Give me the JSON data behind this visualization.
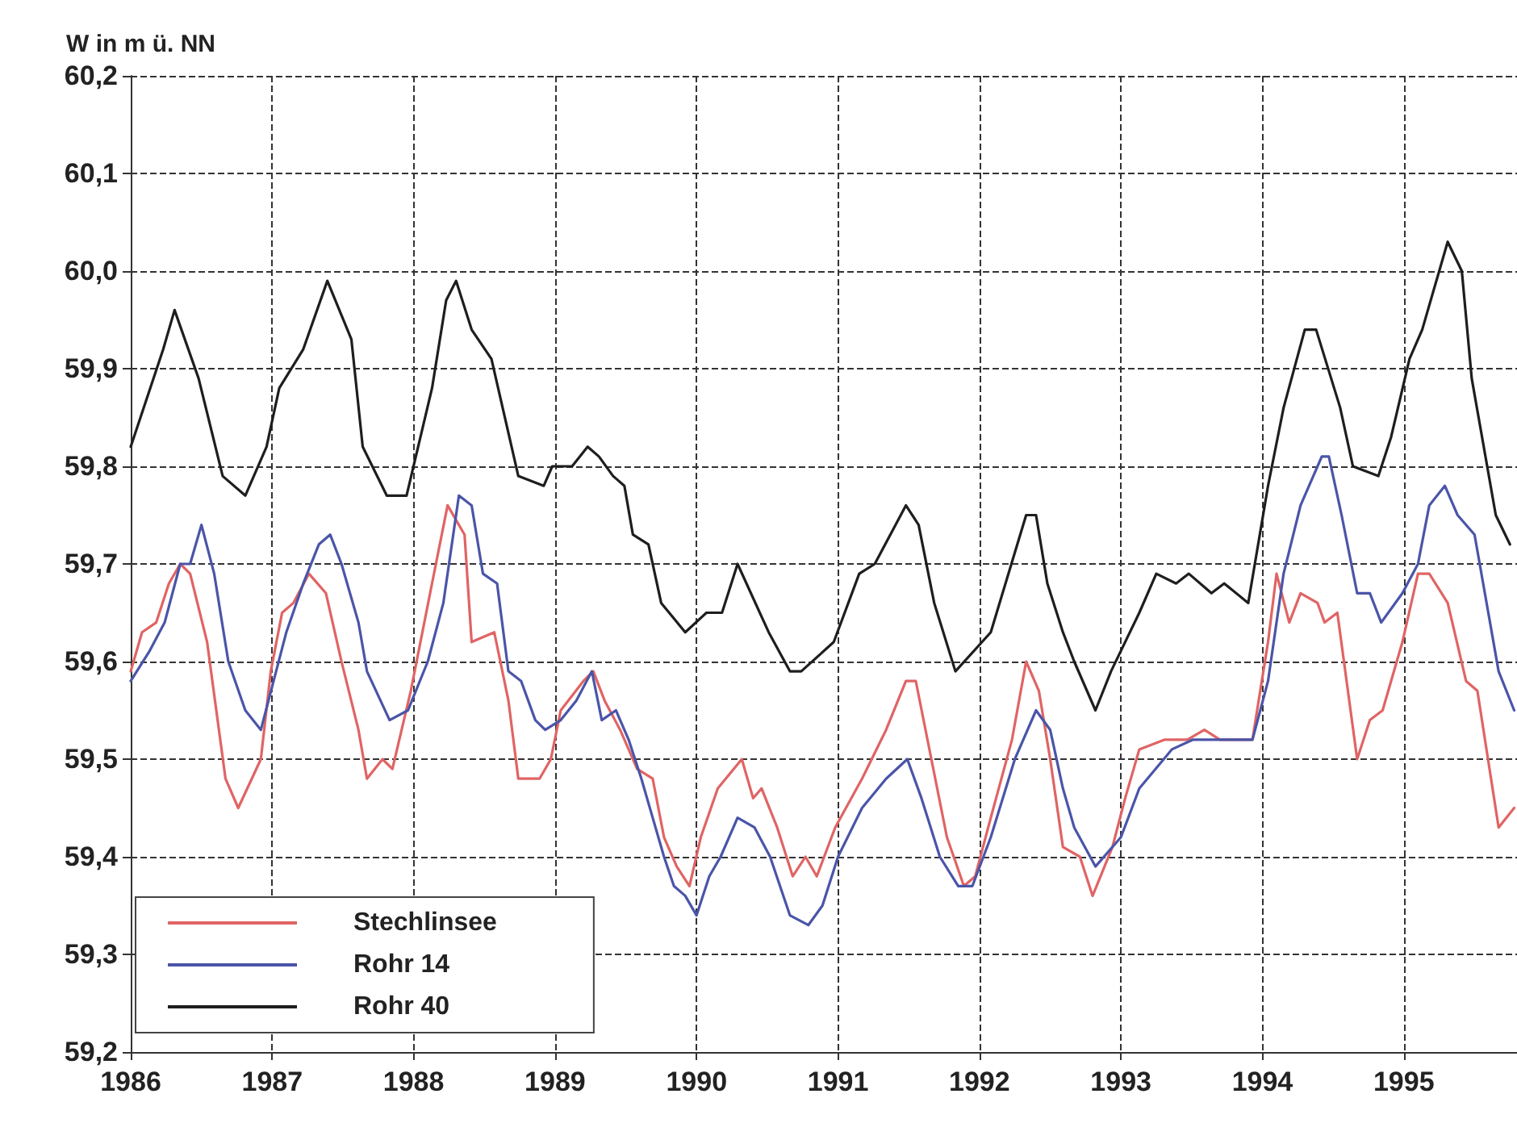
{
  "chart_data": {
    "type": "line",
    "ylabel": "W in m ü. NN",
    "xlim": [
      1986,
      1995.8
    ],
    "xticks": [
      1986,
      1987,
      1988,
      1989,
      1990,
      1991,
      1992,
      1993,
      1994,
      1995
    ],
    "ylim": [
      59.2,
      60.2
    ],
    "yticks": [
      {
        "value": 59.2,
        "label": "59,2"
      },
      {
        "value": 59.3,
        "label": "59,3"
      },
      {
        "value": 59.4,
        "label": "59,4"
      },
      {
        "value": 59.5,
        "label": "59,5"
      },
      {
        "value": 59.6,
        "label": "59,6"
      },
      {
        "value": 59.7,
        "label": "59,7"
      },
      {
        "value": 59.8,
        "label": "59,8"
      },
      {
        "value": 59.9,
        "label": "59,9"
      },
      {
        "value": 60.0,
        "label": "60,0"
      },
      {
        "value": 60.1,
        "label": "60,1"
      },
      {
        "value": 60.2,
        "label": "60,2"
      }
    ],
    "grid": true,
    "legend": "bottom left",
    "marker": "none",
    "line_style": "solid",
    "series": [
      {
        "name": "Stechlinsee",
        "color": "#e06464",
        "x": [
          1986.0,
          1986.08,
          1986.18,
          1986.27,
          1986.35,
          1986.42,
          1986.54,
          1986.67,
          1986.76,
          1986.92,
          1986.99,
          1987.07,
          1987.15,
          1987.26,
          1987.38,
          1987.49,
          1987.61,
          1987.67,
          1987.78,
          1987.85,
          1987.98,
          1988.13,
          1988.24,
          1988.36,
          1988.41,
          1988.57,
          1988.67,
          1988.74,
          1988.89,
          1988.97,
          1989.04,
          1989.2,
          1989.27,
          1989.35,
          1989.46,
          1989.58,
          1989.69,
          1989.77,
          1989.86,
          1989.95,
          1990.03,
          1990.15,
          1990.32,
          1990.4,
          1990.46,
          1990.57,
          1990.68,
          1990.77,
          1990.85,
          1990.98,
          1991.17,
          1991.34,
          1991.48,
          1991.55,
          1991.66,
          1991.77,
          1991.89,
          1991.97,
          1992.08,
          1992.23,
          1992.33,
          1992.42,
          1992.5,
          1992.59,
          1992.71,
          1992.8,
          1992.94,
          1993.03,
          1993.13,
          1993.31,
          1993.47,
          1993.59,
          1993.7,
          1993.85,
          1993.93,
          1994.04,
          1994.1,
          1994.19,
          1994.27,
          1994.39,
          1994.44,
          1994.53,
          1994.67,
          1994.76,
          1994.85,
          1994.99,
          1995.1,
          1995.18,
          1995.31,
          1995.44,
          1995.52,
          1995.67,
          1995.78
        ],
        "values": [
          59.59,
          59.63,
          59.64,
          59.68,
          59.7,
          59.69,
          59.62,
          59.48,
          59.45,
          59.5,
          59.59,
          59.65,
          59.66,
          59.69,
          59.67,
          59.6,
          59.53,
          59.48,
          59.5,
          59.49,
          59.57,
          59.68,
          59.76,
          59.73,
          59.62,
          59.63,
          59.56,
          59.48,
          59.48,
          59.5,
          59.55,
          59.58,
          59.59,
          59.56,
          59.53,
          59.49,
          59.48,
          59.42,
          59.39,
          59.37,
          59.42,
          59.47,
          59.5,
          59.46,
          59.47,
          59.43,
          59.38,
          59.4,
          59.38,
          59.43,
          59.48,
          59.53,
          59.58,
          59.58,
          59.5,
          59.42,
          59.37,
          59.38,
          59.44,
          59.52,
          59.6,
          59.57,
          59.5,
          59.41,
          59.4,
          59.36,
          59.41,
          59.46,
          59.51,
          59.52,
          59.52,
          59.53,
          59.52,
          59.52,
          59.52,
          59.62,
          59.69,
          59.64,
          59.67,
          59.66,
          59.64,
          59.65,
          59.5,
          59.54,
          59.55,
          59.62,
          59.69,
          59.69,
          59.66,
          59.58,
          59.57,
          59.43,
          59.45
        ]
      },
      {
        "name": "Rohr 14",
        "color": "#4a55a8",
        "x": [
          1986.0,
          1986.13,
          1986.24,
          1986.35,
          1986.42,
          1986.5,
          1986.59,
          1986.69,
          1986.81,
          1986.92,
          1987.01,
          1987.1,
          1987.22,
          1987.33,
          1987.41,
          1987.49,
          1987.61,
          1987.67,
          1987.83,
          1987.96,
          1988.1,
          1988.21,
          1988.32,
          1988.41,
          1988.49,
          1988.59,
          1988.67,
          1988.76,
          1988.86,
          1988.93,
          1989.04,
          1989.15,
          1989.26,
          1989.33,
          1989.43,
          1989.52,
          1989.61,
          1989.69,
          1989.77,
          1989.84,
          1989.92,
          1990.0,
          1990.09,
          1990.17,
          1990.29,
          1990.41,
          1990.52,
          1990.66,
          1990.79,
          1990.89,
          1991.0,
          1991.17,
          1991.34,
          1991.49,
          1991.59,
          1991.72,
          1991.85,
          1991.95,
          1992.08,
          1992.25,
          1992.4,
          1992.5,
          1992.59,
          1992.67,
          1992.82,
          1993.0,
          1993.13,
          1993.36,
          1993.51,
          1993.65,
          1993.81,
          1993.93,
          1994.04,
          1994.15,
          1994.27,
          1994.42,
          1994.47,
          1994.56,
          1994.67,
          1994.76,
          1994.84,
          1994.99,
          1995.1,
          1995.18,
          1995.29,
          1995.38,
          1995.5,
          1995.67,
          1995.78
        ],
        "values": [
          59.58,
          59.61,
          59.64,
          59.7,
          59.7,
          59.74,
          59.69,
          59.6,
          59.55,
          59.53,
          59.58,
          59.63,
          59.68,
          59.72,
          59.73,
          59.7,
          59.64,
          59.59,
          59.54,
          59.55,
          59.6,
          59.66,
          59.77,
          59.76,
          59.69,
          59.68,
          59.59,
          59.58,
          59.54,
          59.53,
          59.54,
          59.56,
          59.59,
          59.54,
          59.55,
          59.52,
          59.48,
          59.44,
          59.4,
          59.37,
          59.36,
          59.34,
          59.38,
          59.4,
          59.44,
          59.43,
          59.4,
          59.34,
          59.33,
          59.35,
          59.4,
          59.45,
          59.48,
          59.5,
          59.46,
          59.4,
          59.37,
          59.37,
          59.42,
          59.5,
          59.55,
          59.53,
          59.47,
          59.43,
          59.39,
          59.42,
          59.47,
          59.51,
          59.52,
          59.52,
          59.52,
          59.52,
          59.58,
          59.69,
          59.76,
          59.81,
          59.81,
          59.75,
          59.67,
          59.67,
          59.64,
          59.67,
          59.7,
          59.76,
          59.78,
          59.75,
          59.73,
          59.59,
          59.55
        ]
      },
      {
        "name": "Rohr 40",
        "color": "#1e1e1e",
        "x": [
          1986.0,
          1986.23,
          1986.31,
          1986.48,
          1986.65,
          1986.81,
          1986.96,
          1987.05,
          1987.22,
          1987.39,
          1987.56,
          1987.64,
          1987.81,
          1987.95,
          1988.13,
          1988.23,
          1988.3,
          1988.41,
          1988.55,
          1988.74,
          1988.92,
          1988.98,
          1989.12,
          1989.23,
          1989.31,
          1989.41,
          1989.49,
          1989.55,
          1989.66,
          1989.75,
          1989.92,
          1990.07,
          1990.18,
          1990.29,
          1990.51,
          1990.66,
          1990.74,
          1990.97,
          1991.15,
          1991.26,
          1991.48,
          1991.57,
          1991.68,
          1991.83,
          1992.08,
          1992.33,
          1992.4,
          1992.48,
          1992.59,
          1992.67,
          1992.82,
          1992.93,
          1993.13,
          1993.25,
          1993.39,
          1993.48,
          1993.64,
          1993.73,
          1993.9,
          1994.04,
          1994.15,
          1994.3,
          1994.38,
          1994.55,
          1994.64,
          1994.82,
          1994.91,
          1995.04,
          1995.13,
          1995.31,
          1995.41,
          1995.48,
          1995.65,
          1995.75
        ],
        "values": [
          59.82,
          59.92,
          59.96,
          59.89,
          59.79,
          59.77,
          59.82,
          59.88,
          59.92,
          59.99,
          59.93,
          59.82,
          59.77,
          59.77,
          59.88,
          59.97,
          59.99,
          59.94,
          59.91,
          59.79,
          59.78,
          59.8,
          59.8,
          59.82,
          59.81,
          59.79,
          59.78,
          59.73,
          59.72,
          59.66,
          59.63,
          59.65,
          59.65,
          59.7,
          59.63,
          59.59,
          59.59,
          59.62,
          59.69,
          59.7,
          59.76,
          59.74,
          59.66,
          59.59,
          59.63,
          59.75,
          59.75,
          59.68,
          59.63,
          59.6,
          59.55,
          59.59,
          59.65,
          59.69,
          59.68,
          59.69,
          59.67,
          59.68,
          59.66,
          59.78,
          59.86,
          59.94,
          59.94,
          59.86,
          59.8,
          59.79,
          59.83,
          59.91,
          59.94,
          60.03,
          60.0,
          59.89,
          59.75,
          59.72
        ]
      }
    ]
  }
}
